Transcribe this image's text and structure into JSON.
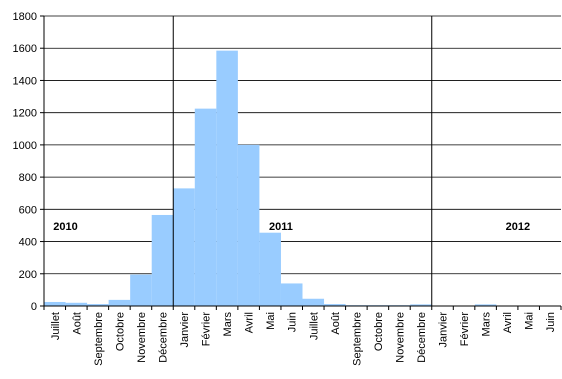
{
  "chart_data": {
    "type": "bar",
    "title": "",
    "xlabel": "",
    "ylabel": "",
    "ylim": [
      0,
      1800
    ],
    "yticks": [
      0,
      200,
      400,
      600,
      800,
      1000,
      1200,
      1400,
      1600,
      1800
    ],
    "grid": "horizontal",
    "bar_color": "#99CCFF",
    "categories": [
      "Juillet",
      "Août",
      "Septembre",
      "Octobre",
      "Novembre",
      "Décembre",
      "Janvier",
      "Février",
      "Mars",
      "Avril",
      "Mai",
      "Juin",
      "Juillet",
      "Août",
      "Septembre",
      "Octobre",
      "Novembre",
      "Décembre",
      "Janvier",
      "Février",
      "Mars",
      "Avril",
      "Mai",
      "Juin"
    ],
    "values": [
      25,
      20,
      12,
      38,
      195,
      565,
      730,
      1225,
      1585,
      1000,
      455,
      140,
      45,
      12,
      5,
      5,
      5,
      10,
      3,
      3,
      10,
      3,
      3,
      3
    ],
    "year_labels": [
      {
        "text": "2010",
        "after_category_index": 0
      },
      {
        "text": "2011",
        "after_category_index": 10
      },
      {
        "text": "2012",
        "after_category_index": 21
      }
    ],
    "year_separators_before_index": [
      6,
      18
    ]
  }
}
